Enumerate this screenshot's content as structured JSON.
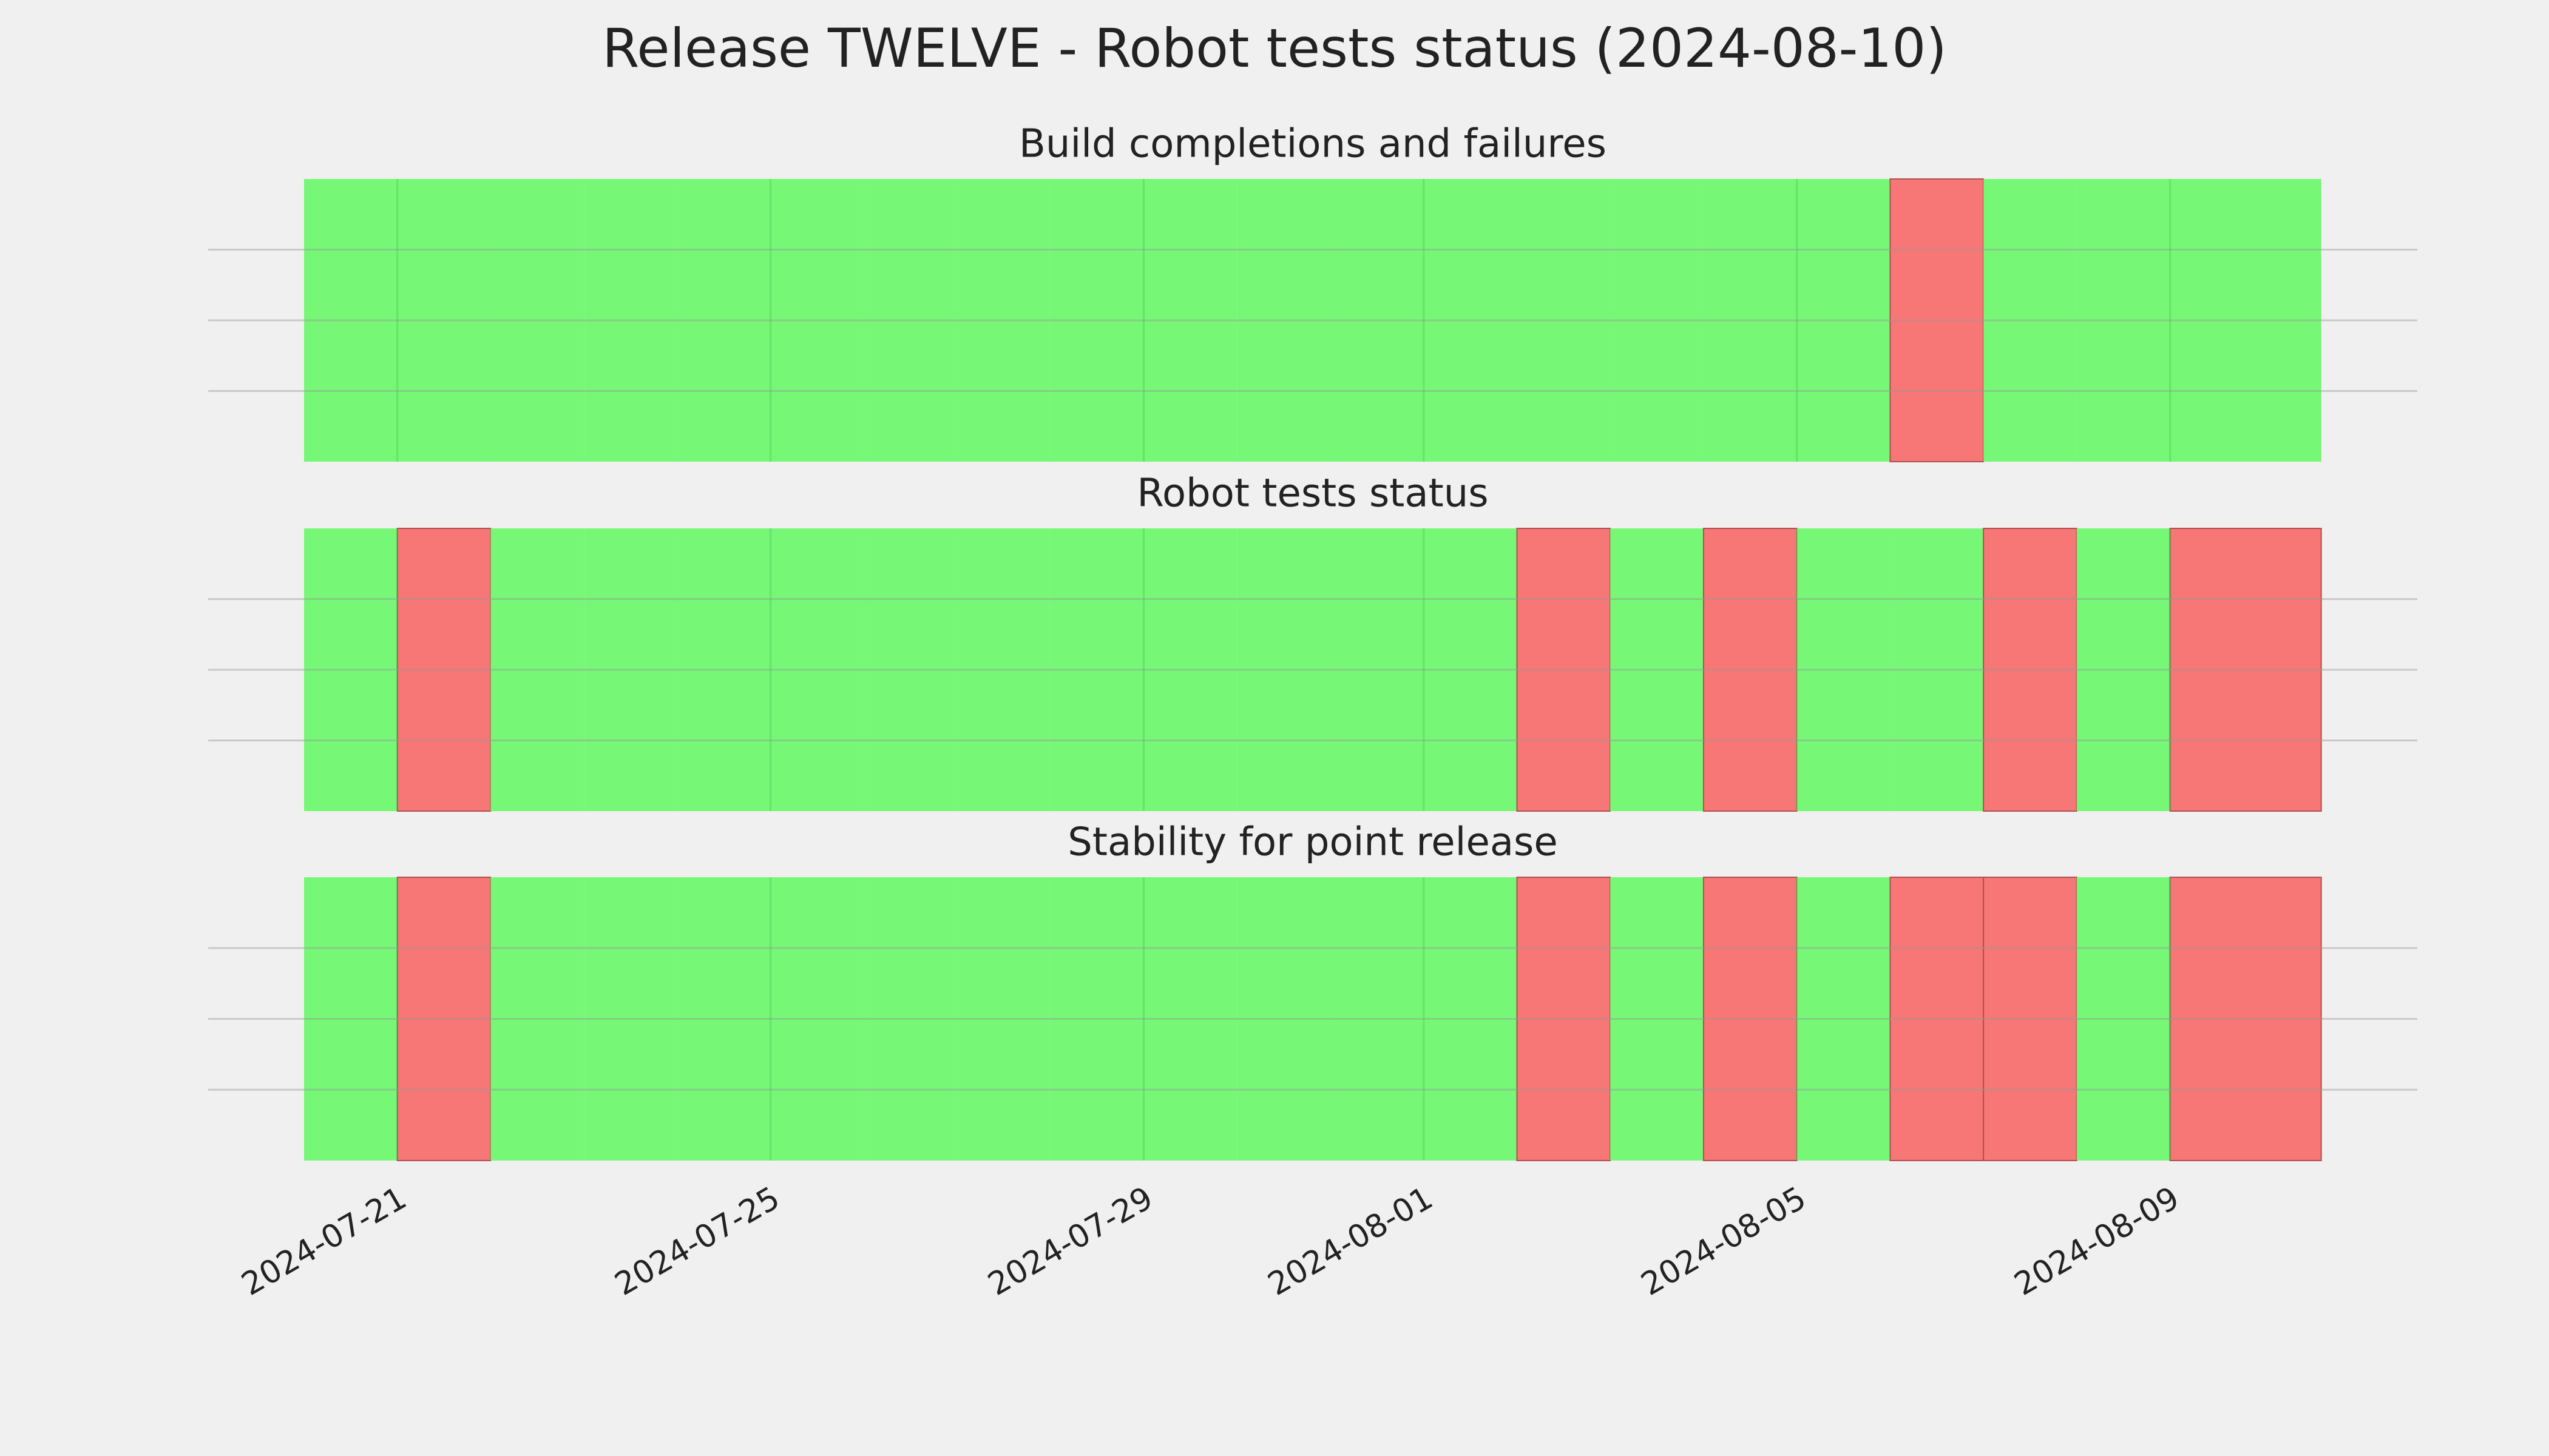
{
  "title": "Release TWELVE - Robot tests status (2024-08-10)",
  "chart_data": [
    {
      "type": "status",
      "title": "Build completions and failures",
      "x": [
        "2024-07-20",
        "2024-07-21",
        "2024-07-22",
        "2024-07-23",
        "2024-07-24",
        "2024-07-25",
        "2024-07-26",
        "2024-07-27",
        "2024-07-28",
        "2024-07-29",
        "2024-07-30",
        "2024-07-31",
        "2024-08-01",
        "2024-08-02",
        "2024-08-03",
        "2024-08-04",
        "2024-08-05",
        "2024-08-06",
        "2024-08-07",
        "2024-08-08",
        "2024-08-09"
      ],
      "x_end": "2024-08-10T14:53Z",
      "values": [
        1,
        1,
        1,
        1,
        1,
        1,
        1,
        1,
        1,
        1,
        1,
        1,
        1,
        1,
        1,
        1,
        1,
        0,
        1,
        1,
        1
      ],
      "pass_color": "#76f776",
      "fail_color": "#f77676",
      "xlim": [
        "2024-07-18T23:20Z",
        "2024-08-11T15:36Z"
      ],
      "xticks": [
        "2024-07-21",
        "2024-07-25",
        "2024-07-29",
        "2024-08-01",
        "2024-08-05",
        "2024-08-09"
      ],
      "xtick_labels": false,
      "ylim": [
        0,
        1
      ],
      "yticks": [
        0.25,
        0.5,
        0.75
      ],
      "grid": true
    },
    {
      "type": "status",
      "title": "Robot tests status",
      "x": [
        "2024-07-20",
        "2024-07-21",
        "2024-07-22",
        "2024-07-23",
        "2024-07-24",
        "2024-07-25",
        "2024-07-26",
        "2024-07-27",
        "2024-07-28",
        "2024-07-29",
        "2024-07-30",
        "2024-07-31",
        "2024-08-01",
        "2024-08-02",
        "2024-08-03",
        "2024-08-04",
        "2024-08-05",
        "2024-08-06",
        "2024-08-07",
        "2024-08-08",
        "2024-08-09"
      ],
      "x_end": "2024-08-10T14:53Z",
      "values": [
        1,
        0,
        1,
        1,
        1,
        1,
        1,
        1,
        1,
        1,
        1,
        1,
        1,
        0,
        1,
        0,
        1,
        1,
        0,
        1,
        0
      ],
      "pass_color": "#76f776",
      "fail_color": "#f77676",
      "xlim": [
        "2024-07-18T23:20Z",
        "2024-08-11T15:36Z"
      ],
      "xticks": [
        "2024-07-21",
        "2024-07-25",
        "2024-07-29",
        "2024-08-01",
        "2024-08-05",
        "2024-08-09"
      ],
      "xtick_labels": false,
      "ylim": [
        0,
        1
      ],
      "yticks": [
        0.25,
        0.5,
        0.75
      ],
      "grid": true
    },
    {
      "type": "status",
      "title": "Stability for point release",
      "x": [
        "2024-07-20",
        "2024-07-21",
        "2024-07-22",
        "2024-07-23",
        "2024-07-24",
        "2024-07-25",
        "2024-07-26",
        "2024-07-27",
        "2024-07-28",
        "2024-07-29",
        "2024-07-30",
        "2024-07-31",
        "2024-08-01",
        "2024-08-02",
        "2024-08-03",
        "2024-08-04",
        "2024-08-05",
        "2024-08-06",
        "2024-08-07",
        "2024-08-08",
        "2024-08-09"
      ],
      "x_end": "2024-08-10T14:53Z",
      "values": [
        1,
        0,
        1,
        1,
        1,
        1,
        1,
        1,
        1,
        1,
        1,
        1,
        1,
        0,
        1,
        0,
        1,
        0,
        0,
        1,
        0
      ],
      "pass_color": "#76f776",
      "fail_color": "#f77676",
      "xlim": [
        "2024-07-18T23:20Z",
        "2024-08-11T15:36Z"
      ],
      "xticks": [
        "2024-07-21",
        "2024-07-25",
        "2024-07-29",
        "2024-08-01",
        "2024-08-05",
        "2024-08-09"
      ],
      "xtick_labels": true,
      "ylim": [
        0,
        1
      ],
      "yticks": [
        0.25,
        0.5,
        0.75
      ],
      "grid": true
    }
  ]
}
